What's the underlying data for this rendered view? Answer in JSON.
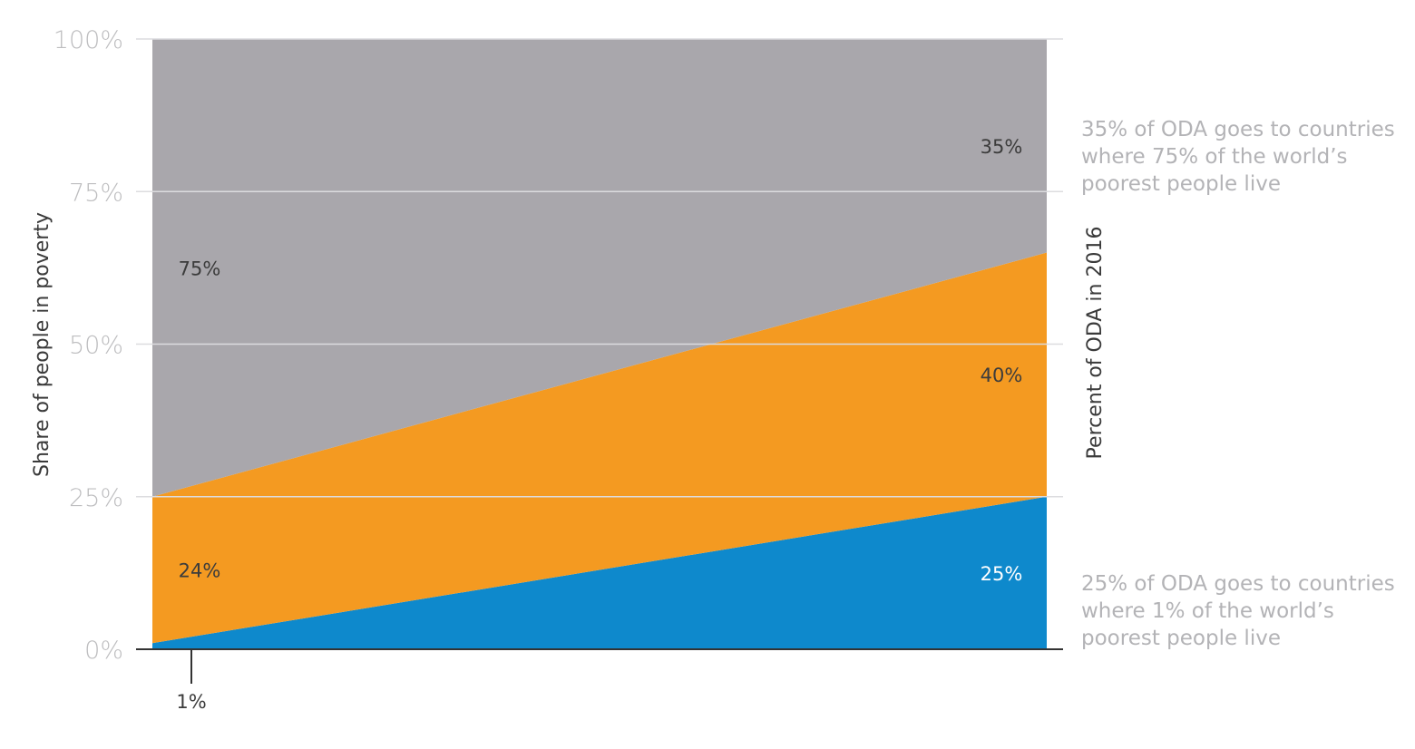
{
  "chart_data": {
    "type": "area",
    "stacked": true,
    "x": [
      "left",
      "right"
    ],
    "ylabel_left": "Share of people in poverty",
    "ylabel_right": "Percent of ODA in 2016",
    "yticks": [
      "0%",
      "25%",
      "50%",
      "75%",
      "100%"
    ],
    "ylim": [
      0,
      100
    ],
    "grid": true,
    "series": [
      {
        "values": [
          1,
          25
        ],
        "color": "#0e89cc",
        "labels": [
          "",
          "25%"
        ]
      },
      {
        "values": [
          24,
          40
        ],
        "color": "#f49a21",
        "labels": [
          "24%",
          "40%"
        ]
      },
      {
        "values": [
          75,
          35
        ],
        "color": "#a9a7ac",
        "labels": [
          "75%",
          "35%"
        ]
      }
    ],
    "bottom_annotation": "1%",
    "annotations": [
      "35% of ODA goes to countries\nwhere 75% of the world’s\npoorest people live",
      "25% of ODA goes to countries\nwhere 1% of the world’s\npoorest people live"
    ]
  }
}
